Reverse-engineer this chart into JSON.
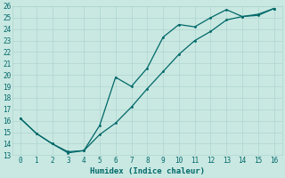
{
  "xlabel": "Humidex (Indice chaleur)",
  "x": [
    0,
    1,
    2,
    3,
    4,
    5,
    6,
    7,
    8,
    9,
    10,
    11,
    12,
    13,
    14,
    15,
    16
  ],
  "y_jagged": [
    16.2,
    14.9,
    14.0,
    13.2,
    13.4,
    15.6,
    19.8,
    19.0,
    20.6,
    23.3,
    24.4,
    24.2,
    25.0,
    25.7,
    25.1,
    25.2,
    25.8
  ],
  "y_smooth": [
    16.2,
    14.9,
    14.0,
    13.3,
    13.4,
    14.8,
    15.8,
    17.2,
    18.8,
    20.3,
    21.8,
    23.0,
    23.8,
    24.8,
    25.1,
    25.3,
    25.8
  ],
  "line_color": "#006868",
  "bg_color": "#c9e8e2",
  "grid_color_major": "#b0d4ce",
  "grid_color_minor": "#d4ecea",
  "text_color": "#006868",
  "ylim": [
    13,
    26
  ],
  "xlim": [
    -0.5,
    16.5
  ],
  "yticks": [
    13,
    14,
    15,
    16,
    17,
    18,
    19,
    20,
    21,
    22,
    23,
    24,
    25,
    26
  ],
  "xticks": [
    0,
    1,
    2,
    3,
    4,
    5,
    6,
    7,
    8,
    9,
    10,
    11,
    12,
    13,
    14,
    15,
    16
  ]
}
